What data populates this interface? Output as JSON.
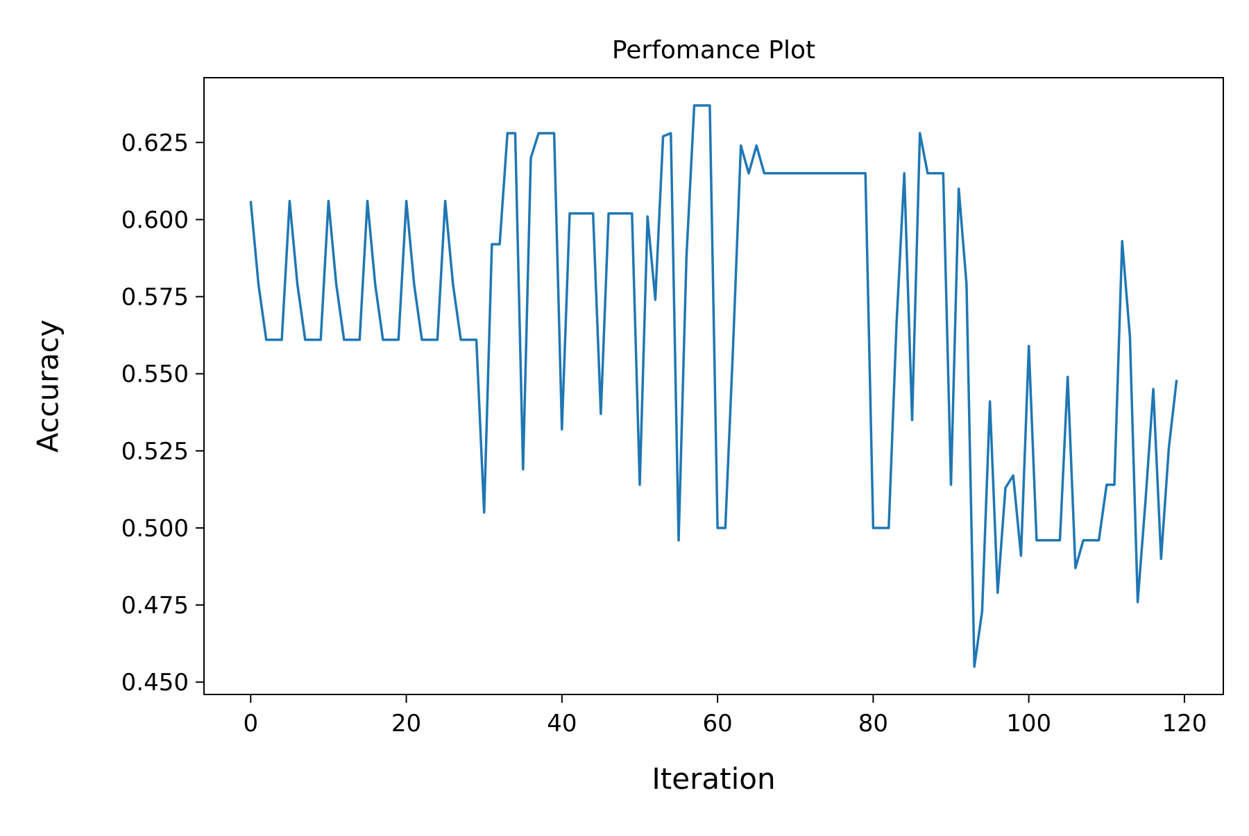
{
  "chart_data": {
    "type": "line",
    "title": "Perfomance Plot",
    "xlabel": "Iteration",
    "ylabel": "Accuracy",
    "xlim": [
      -6,
      125
    ],
    "ylim": [
      0.446,
      0.646
    ],
    "xticks": [
      0,
      20,
      40,
      60,
      80,
      100,
      120
    ],
    "yticks": [
      0.45,
      0.475,
      0.5,
      0.525,
      0.55,
      0.575,
      0.6,
      0.625
    ],
    "xtick_labels": [
      "0",
      "20",
      "40",
      "60",
      "80",
      "100",
      "120"
    ],
    "ytick_labels": [
      "0.450",
      "0.475",
      "0.500",
      "0.525",
      "0.550",
      "0.575",
      "0.600",
      "0.625"
    ],
    "grid": false,
    "series": [
      {
        "color": "#1f77b4",
        "x": [
          0,
          1,
          2,
          3,
          4,
          5,
          6,
          7,
          8,
          9,
          10,
          11,
          12,
          13,
          14,
          15,
          16,
          17,
          18,
          19,
          20,
          21,
          22,
          23,
          24,
          25,
          26,
          27,
          28,
          29,
          30,
          31,
          32,
          33,
          34,
          35,
          36,
          37,
          38,
          39,
          40,
          41,
          42,
          43,
          44,
          45,
          46,
          47,
          48,
          49,
          50,
          51,
          52,
          53,
          54,
          55,
          56,
          57,
          58,
          59,
          60,
          61,
          62,
          63,
          64,
          65,
          66,
          67,
          68,
          69,
          70,
          71,
          72,
          73,
          74,
          75,
          76,
          77,
          78,
          79,
          80,
          81,
          82,
          83,
          84,
          85,
          86,
          87,
          88,
          89,
          90,
          91,
          92,
          93,
          94,
          95,
          96,
          97,
          98,
          99,
          100,
          101,
          102,
          103,
          104,
          105,
          106,
          107,
          108,
          109,
          110,
          111,
          112,
          113,
          114,
          115,
          116,
          117,
          118,
          119
        ],
        "values": [
          0.606,
          0.579,
          0.561,
          0.561,
          0.561,
          0.606,
          0.579,
          0.561,
          0.561,
          0.561,
          0.606,
          0.579,
          0.561,
          0.561,
          0.561,
          0.606,
          0.579,
          0.561,
          0.561,
          0.561,
          0.606,
          0.579,
          0.561,
          0.561,
          0.561,
          0.606,
          0.579,
          0.561,
          0.561,
          0.561,
          0.505,
          0.592,
          0.592,
          0.628,
          0.628,
          0.519,
          0.62,
          0.628,
          0.628,
          0.628,
          0.532,
          0.602,
          0.602,
          0.602,
          0.602,
          0.537,
          0.602,
          0.602,
          0.602,
          0.602,
          0.514,
          0.601,
          0.574,
          0.627,
          0.628,
          0.496,
          0.588,
          0.637,
          0.637,
          0.637,
          0.5,
          0.5,
          0.559,
          0.624,
          0.615,
          0.624,
          0.615,
          0.615,
          0.615,
          0.615,
          0.615,
          0.615,
          0.615,
          0.615,
          0.615,
          0.615,
          0.615,
          0.615,
          0.615,
          0.615,
          0.5,
          0.5,
          0.5,
          0.566,
          0.615,
          0.535,
          0.628,
          0.615,
          0.615,
          0.615,
          0.514,
          0.61,
          0.579,
          0.455,
          0.473,
          0.541,
          0.479,
          0.513,
          0.517,
          0.491,
          0.559,
          0.496,
          0.496,
          0.496,
          0.496,
          0.549,
          0.487,
          0.496,
          0.496,
          0.496,
          0.514,
          0.514,
          0.593,
          0.562,
          0.476,
          0.509,
          0.545,
          0.49,
          0.526,
          0.548
        ]
      }
    ]
  }
}
